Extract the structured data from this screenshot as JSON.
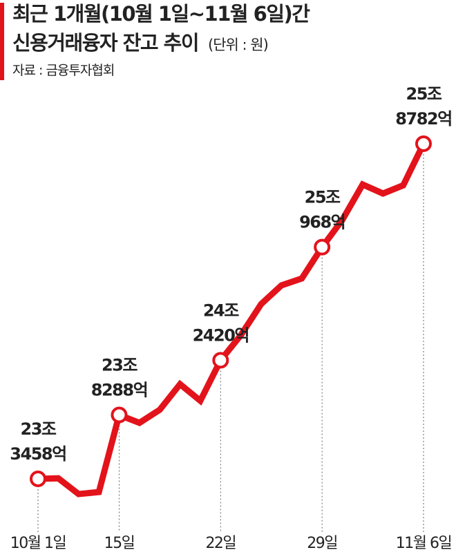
{
  "chart_data": {
    "type": "line",
    "title": "최근 1개월(10월 1일~11월 6일)간",
    "subtitle": "신용거래융자 잔고 추이",
    "unit": "(단위 : 원)",
    "source": "자료 : 금융투자협회",
    "color": "#e3131b",
    "categories": [
      "10월 1일",
      null,
      null,
      null,
      "15일",
      null,
      null,
      null,
      null,
      "22일",
      null,
      null,
      null,
      null,
      "29일",
      null,
      null,
      null,
      null,
      "11월 6일"
    ],
    "values": [
      233458,
      233500,
      232310,
      232460,
      238288,
      237690,
      238680,
      240610,
      239360,
      242420,
      244320,
      246670,
      248080,
      248600,
      250968,
      253030,
      255700,
      255020,
      255640,
      258782
    ],
    "value_labels": [
      [
        "23조",
        "3458억"
      ],
      null,
      null,
      null,
      [
        "23조",
        "8288억"
      ],
      null,
      null,
      null,
      null,
      [
        "24조",
        "2420억"
      ],
      null,
      null,
      null,
      null,
      [
        "25조",
        "968억"
      ],
      null,
      null,
      null,
      null,
      [
        "25조",
        "8782억"
      ]
    ]
  }
}
